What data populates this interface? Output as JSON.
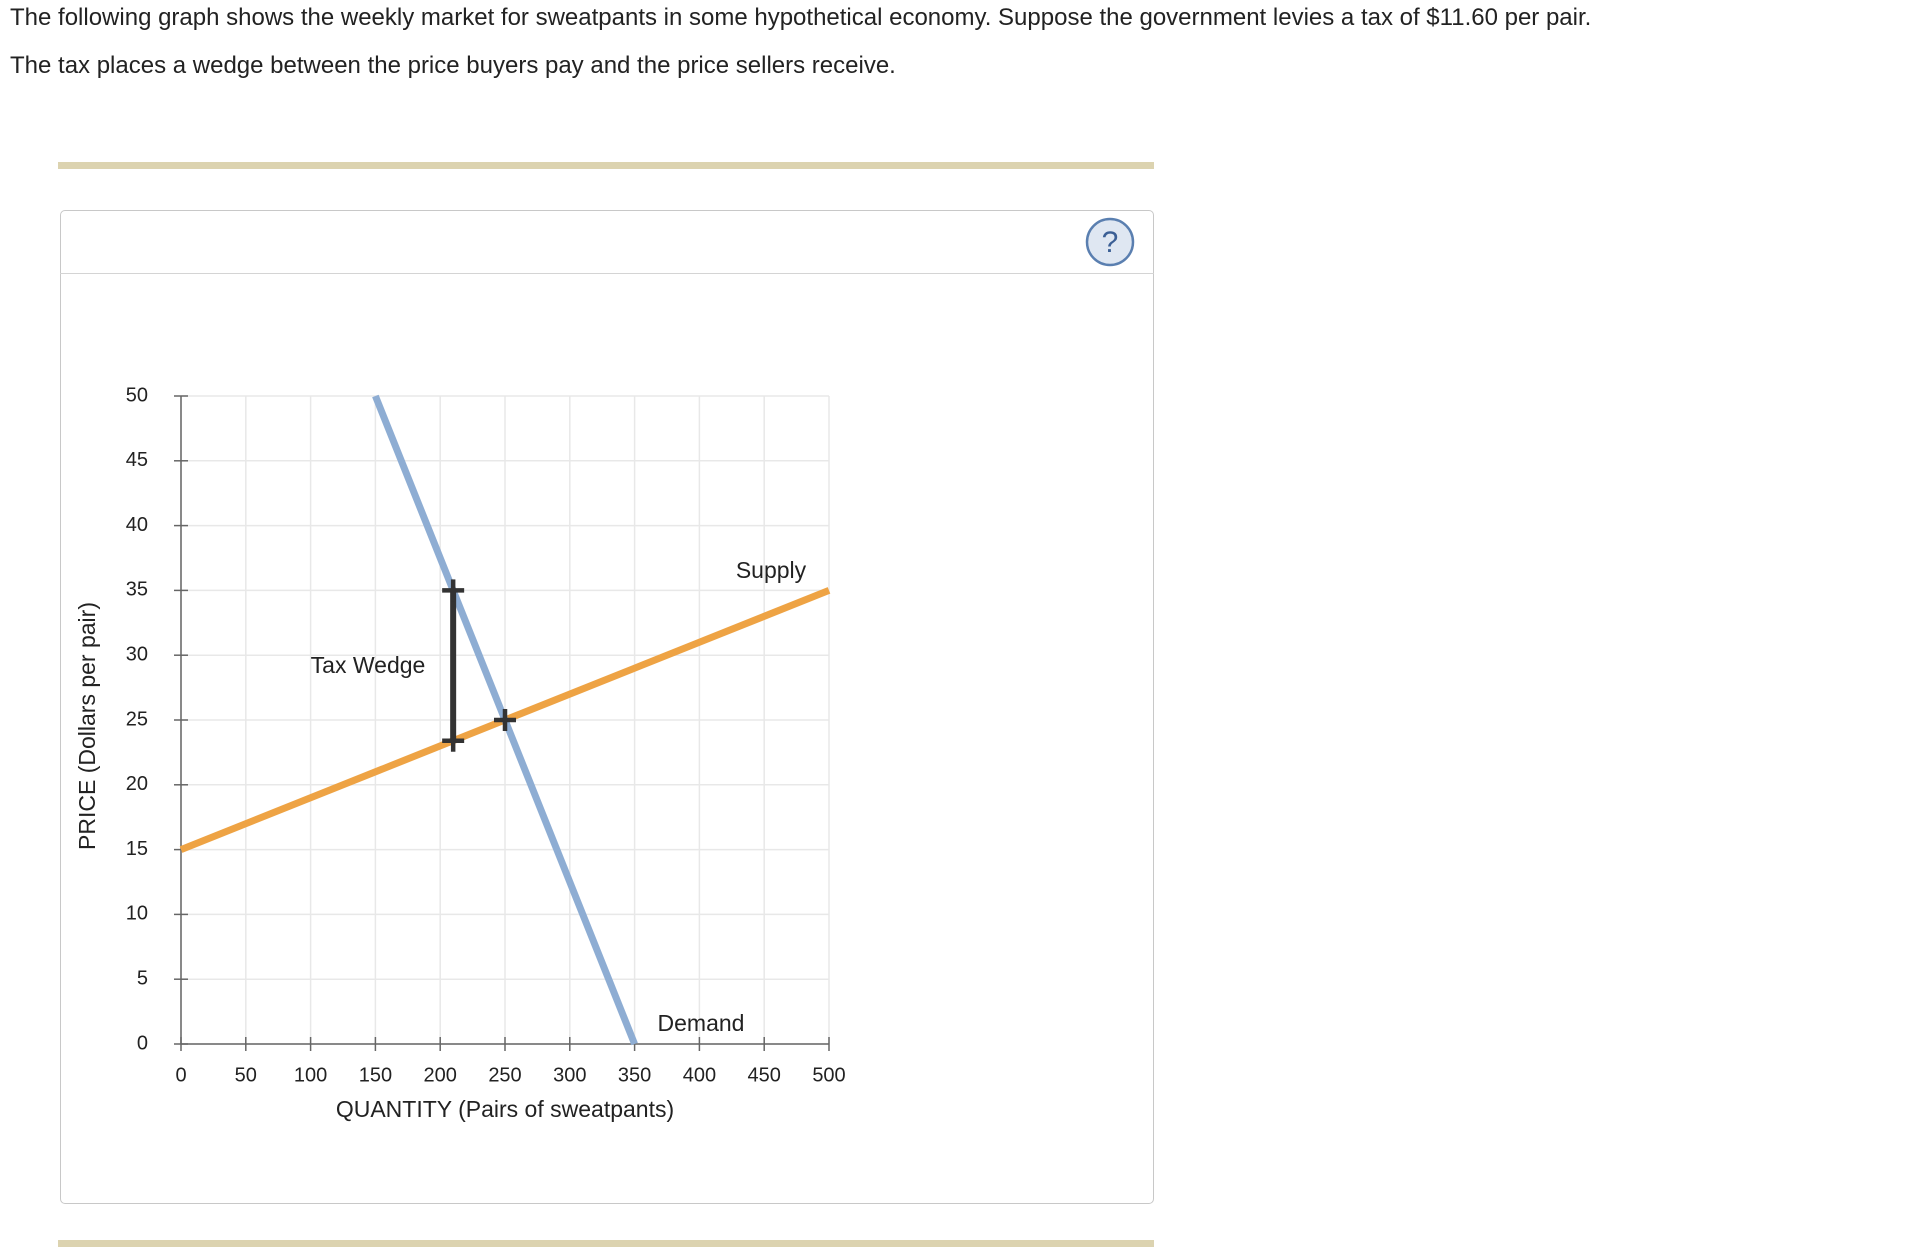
{
  "question": [
    "The following graph shows the weekly market for sweatpants in some hypothetical economy. Suppose the government levies a tax of $11.60 per pair.",
    "The tax places a wedge between the price buyers pay and the price sellers receive."
  ],
  "help_icon": "?",
  "chart_data": {
    "type": "line",
    "xlabel": "QUANTITY (Pairs of sweatpants)",
    "ylabel": "PRICE (Dollars per pair)",
    "xlim": [
      0,
      500
    ],
    "ylim": [
      0,
      50
    ],
    "xticks": [
      0,
      50,
      100,
      150,
      200,
      250,
      300,
      350,
      400,
      450,
      500
    ],
    "yticks": [
      0,
      5,
      10,
      15,
      20,
      25,
      30,
      35,
      40,
      45,
      50
    ],
    "grid": true,
    "series": [
      {
        "name": "Supply",
        "color": "#eea344",
        "x": [
          0,
          500
        ],
        "values": [
          15,
          35
        ]
      },
      {
        "name": "Demand",
        "color": "#8eadd3",
        "x": [
          150,
          350
        ],
        "values": [
          50,
          0
        ]
      },
      {
        "name": "Tax Wedge",
        "color": "#333333",
        "x": [
          210,
          210
        ],
        "values": [
          23.4,
          35
        ]
      }
    ],
    "points": {
      "x": [
        250
      ],
      "values": [
        25
      ]
    }
  }
}
